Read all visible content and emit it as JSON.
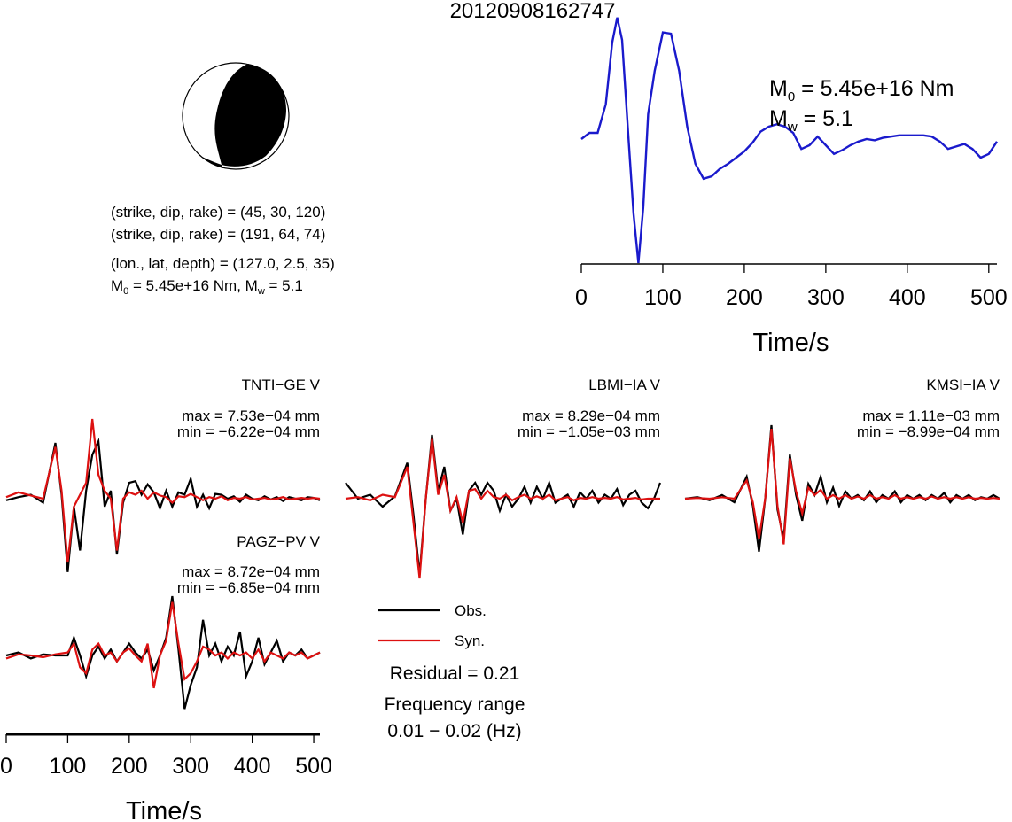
{
  "title": "20120908162747",
  "colors": {
    "observed": "#000000",
    "synthetic": "#dd1111",
    "stf": "#1a1acc",
    "axis": "#000000"
  },
  "mechanism": {
    "plane1_label": "(strike, dip, rake) = (45, 30, 120)",
    "plane2_label": "(strike, dip, rake) = (191, 64, 74)",
    "location_label": "(lon., lat, depth) = (127.0, 2.5, 35)",
    "m0_prefix": "M",
    "m0_sub": "0",
    "m0_value": " = 5.45e+16 Nm, M",
    "mw_sub": "w",
    "mw_value": " = 5.1"
  },
  "moment_info": {
    "m0_prefix": "M",
    "m0_sub": "0",
    "m0_value": " = 5.45e+16 Nm",
    "mw_prefix": "M",
    "mw_sub": "w",
    "mw_value": " = 5.1"
  },
  "legend": {
    "obs_label": "Obs.",
    "syn_label": "Syn.",
    "residual_label": "Residual = 0.21",
    "freq_label": "Frequency range",
    "freq_value": "0.01 − 0.02 (Hz)"
  },
  "chart_data": [
    {
      "type": "line",
      "title": "",
      "xlabel": "Time/s",
      "ylabel": "",
      "xlim": [
        0,
        510
      ],
      "xticks": [
        0,
        100,
        200,
        300,
        400,
        500
      ],
      "grid": false,
      "series": [
        {
          "x": [
            0,
            10,
            20,
            30,
            38,
            44,
            50,
            58,
            64,
            70,
            76,
            82,
            90,
            100,
            110,
            120,
            130,
            140,
            150,
            160,
            170,
            180,
            190,
            200,
            210,
            220,
            230,
            240,
            250,
            260,
            270,
            280,
            290,
            300,
            310,
            320,
            330,
            340,
            350,
            360,
            370,
            380,
            390,
            400,
            410,
            420,
            430,
            440,
            450,
            460,
            470,
            480,
            490,
            500,
            510
          ],
          "y": [
            0.0,
            0.05,
            0.05,
            0.28,
            0.78,
            0.98,
            0.8,
            0.0,
            -0.6,
            -1.0,
            -0.55,
            0.2,
            0.55,
            0.86,
            0.85,
            0.55,
            0.1,
            -0.2,
            -0.32,
            -0.3,
            -0.24,
            -0.2,
            -0.15,
            -0.1,
            -0.03,
            0.06,
            0.1,
            0.12,
            0.1,
            0.05,
            -0.08,
            -0.05,
            0.02,
            -0.05,
            -0.12,
            -0.09,
            -0.05,
            -0.02,
            0.0,
            -0.01,
            0.01,
            0.02,
            0.03,
            0.03,
            0.03,
            0.03,
            0.02,
            -0.02,
            -0.08,
            -0.06,
            -0.04,
            -0.08,
            -0.15,
            -0.12,
            -0.02
          ]
        }
      ]
    },
    {
      "type": "line",
      "title": "TNTI−GE V",
      "max_label": "max = 7.53e−04 mm",
      "min_label": "min = −6.22e−04 mm",
      "series": [
        {
          "name": "Obs.",
          "x": [
            0,
            20,
            40,
            60,
            80,
            90,
            100,
            110,
            120,
            130,
            140,
            150,
            160,
            170,
            180,
            190,
            200,
            210,
            220,
            230,
            240,
            250,
            260,
            270,
            280,
            290,
            300,
            310,
            320,
            330,
            340,
            350,
            360,
            370,
            380,
            390,
            400,
            410,
            420,
            430,
            440,
            450,
            460,
            470,
            480,
            490,
            500,
            510
          ],
          "y": [
            -0.02,
            0.02,
            0.05,
            -0.05,
            0.7,
            0.05,
            -0.92,
            -0.1,
            -0.65,
            0.1,
            0.55,
            0.72,
            -0.1,
            0.1,
            -0.7,
            -0.05,
            0.2,
            0.22,
            0.05,
            0.18,
            0.08,
            -0.12,
            0.1,
            -0.1,
            0.08,
            0.05,
            0.25,
            -0.1,
            0.05,
            -0.12,
            0.06,
            0.05,
            0.0,
            0.03,
            -0.04,
            0.05,
            0.0,
            -0.02,
            0.03,
            -0.01,
            0.02,
            -0.03,
            0.02,
            0.0,
            -0.02,
            0.02,
            0.01,
            -0.02
          ]
        },
        {
          "name": "Syn.",
          "x": [
            0,
            20,
            40,
            60,
            80,
            90,
            100,
            110,
            120,
            130,
            140,
            150,
            160,
            170,
            180,
            190,
            200,
            210,
            220,
            230,
            240,
            250,
            260,
            270,
            280,
            290,
            300,
            310,
            320,
            330,
            340,
            350,
            360,
            370,
            380,
            390,
            400,
            410,
            420,
            430,
            440,
            450,
            460,
            470,
            480,
            490,
            500,
            510
          ],
          "y": [
            0.02,
            0.08,
            0.04,
            0.0,
            0.65,
            0.1,
            -0.8,
            -0.1,
            0.05,
            0.2,
            1.0,
            0.3,
            0.1,
            0.0,
            -0.65,
            0.0,
            0.08,
            0.05,
            0.1,
            0.0,
            0.08,
            0.04,
            0.02,
            -0.05,
            0.03,
            0.02,
            0.06,
            0.02,
            -0.02,
            0.02,
            0.0,
            0.03,
            -0.02,
            0.01,
            0.0,
            0.02,
            -0.01,
            0.0,
            0.01,
            -0.01,
            0.0,
            0.02,
            -0.01,
            0.0,
            0.01,
            0.0,
            0.01,
            0.0
          ]
        }
      ]
    },
    {
      "type": "line",
      "title": "LBMI−IA V",
      "max_label": "max = 8.29e−04 mm",
      "min_label": "min = −1.05e−03 mm",
      "series": [
        {
          "name": "Obs.",
          "x": [
            0,
            20,
            40,
            60,
            80,
            100,
            110,
            120,
            130,
            140,
            150,
            160,
            170,
            180,
            190,
            200,
            210,
            220,
            230,
            240,
            250,
            260,
            270,
            280,
            290,
            300,
            310,
            320,
            330,
            340,
            350,
            360,
            370,
            380,
            390,
            400,
            410,
            420,
            430,
            440,
            450,
            460,
            470,
            480,
            490,
            500,
            510
          ],
          "y": [
            0.2,
            0.0,
            0.05,
            -0.1,
            0.03,
            0.45,
            -0.2,
            -0.95,
            0.0,
            0.8,
            0.1,
            0.4,
            -0.15,
            0.0,
            -0.45,
            0.1,
            0.2,
            0.05,
            0.2,
            0.1,
            -0.15,
            0.05,
            -0.1,
            0.0,
            0.15,
            -0.05,
            0.15,
            0.0,
            0.2,
            -0.05,
            0.0,
            0.05,
            -0.1,
            0.08,
            0.0,
            0.1,
            -0.05,
            0.05,
            0.0,
            0.12,
            -0.08,
            0.05,
            0.1,
            -0.05,
            -0.12,
            0.0,
            0.2
          ]
        },
        {
          "name": "Syn.",
          "x": [
            0,
            20,
            40,
            60,
            80,
            100,
            110,
            120,
            130,
            140,
            150,
            160,
            170,
            180,
            190,
            200,
            210,
            220,
            230,
            240,
            250,
            260,
            270,
            280,
            290,
            300,
            310,
            320,
            330,
            340,
            350,
            360,
            370,
            380,
            390,
            400,
            410,
            420,
            430,
            440,
            450,
            460,
            470,
            480,
            490,
            500,
            510
          ],
          "y": [
            0.0,
            0.02,
            -0.02,
            0.05,
            0.02,
            0.4,
            -0.3,
            -1.0,
            0.0,
            0.75,
            0.05,
            0.3,
            -0.15,
            0.02,
            -0.3,
            0.1,
            0.12,
            0.0,
            0.1,
            0.02,
            0.0,
            0.05,
            -0.02,
            0.02,
            0.05,
            0.0,
            0.03,
            0.0,
            0.05,
            -0.02,
            0.0,
            0.02,
            -0.02,
            0.01,
            0.0,
            0.02,
            0.0,
            0.01,
            0.0,
            0.02,
            -0.01,
            0.0,
            0.01,
            -0.01,
            0.0,
            0.0,
            0.0
          ]
        }
      ]
    },
    {
      "type": "line",
      "title": "KMSI−IA V",
      "max_label": "max = 1.11e−03 mm",
      "min_label": "min = −8.99e−04 mm",
      "series": [
        {
          "name": "Obs.",
          "x": [
            0,
            20,
            40,
            60,
            80,
            100,
            110,
            120,
            130,
            140,
            150,
            160,
            170,
            180,
            190,
            200,
            210,
            220,
            230,
            240,
            250,
            260,
            270,
            280,
            290,
            300,
            310,
            320,
            330,
            340,
            350,
            360,
            370,
            380,
            390,
            400,
            410,
            420,
            430,
            440,
            450,
            460,
            470,
            480,
            490,
            500,
            510
          ],
          "y": [
            0.0,
            0.02,
            -0.02,
            0.05,
            -0.05,
            0.3,
            -0.1,
            -0.72,
            0.0,
            1.0,
            -0.15,
            -0.55,
            0.6,
            0.05,
            -0.3,
            0.2,
            0.05,
            0.3,
            -0.05,
            0.15,
            -0.1,
            0.1,
            0.0,
            0.05,
            -0.02,
            0.1,
            -0.05,
            0.05,
            0.0,
            0.1,
            -0.05,
            0.05,
            0.0,
            0.05,
            -0.02,
            0.05,
            0.0,
            0.08,
            -0.05,
            0.05,
            0.0,
            0.05,
            -0.02,
            0.02,
            0.0,
            0.05,
            0.0
          ]
        },
        {
          "name": "Syn.",
          "x": [
            0,
            20,
            40,
            60,
            80,
            100,
            110,
            120,
            130,
            140,
            150,
            160,
            170,
            180,
            190,
            200,
            210,
            220,
            230,
            240,
            250,
            260,
            270,
            280,
            290,
            300,
            310,
            320,
            330,
            340,
            350,
            360,
            370,
            380,
            390,
            400,
            410,
            420,
            430,
            440,
            450,
            460,
            470,
            480,
            490,
            500,
            510
          ],
          "y": [
            0.0,
            0.01,
            0.0,
            0.02,
            0.0,
            0.25,
            -0.05,
            -0.55,
            0.0,
            0.95,
            -0.1,
            -0.62,
            0.55,
            0.1,
            -0.2,
            0.15,
            0.05,
            0.12,
            0.0,
            0.05,
            0.0,
            0.05,
            0.0,
            0.03,
            0.0,
            0.05,
            0.0,
            0.02,
            0.0,
            0.05,
            0.0,
            0.02,
            0.0,
            0.02,
            0.0,
            0.03,
            0.0,
            0.02,
            0.0,
            0.02,
            0.0,
            0.02,
            0.0,
            0.01,
            0.0,
            0.01,
            0.0
          ]
        }
      ]
    },
    {
      "type": "line",
      "title": "PAGZ−PV V",
      "max_label": "max = 8.72e−04 mm",
      "min_label": "min = −6.85e−04 mm",
      "xlabel": "Time/s",
      "xlim": [
        0,
        510
      ],
      "xticks": [
        0,
        100,
        200,
        300,
        400,
        500
      ],
      "series": [
        {
          "name": "Obs.",
          "x": [
            0,
            20,
            40,
            60,
            80,
            100,
            110,
            120,
            130,
            140,
            150,
            160,
            170,
            180,
            190,
            200,
            210,
            220,
            230,
            240,
            250,
            260,
            270,
            280,
            290,
            300,
            310,
            320,
            330,
            340,
            350,
            360,
            370,
            380,
            390,
            400,
            410,
            420,
            430,
            440,
            450,
            460,
            470,
            480,
            490,
            500,
            510
          ],
          "y": [
            0.0,
            0.05,
            -0.05,
            0.02,
            0.0,
            0.0,
            0.3,
            0.0,
            -0.35,
            0.0,
            0.15,
            -0.05,
            0.1,
            -0.1,
            0.05,
            0.2,
            0.05,
            -0.05,
            0.1,
            -0.25,
            0.0,
            0.3,
            1.0,
            0.1,
            -0.9,
            -0.5,
            -0.2,
            0.6,
            0.0,
            0.2,
            -0.1,
            0.15,
            0.0,
            0.4,
            -0.35,
            -0.1,
            0.3,
            -0.15,
            0.05,
            0.25,
            -0.1,
            0.05,
            0.0,
            0.1,
            -0.05,
            0.0,
            0.05
          ]
        },
        {
          "name": "Syn.",
          "x": [
            0,
            20,
            40,
            60,
            80,
            100,
            110,
            120,
            130,
            140,
            150,
            160,
            170,
            180,
            190,
            200,
            210,
            220,
            230,
            240,
            250,
            260,
            270,
            280,
            290,
            300,
            310,
            320,
            330,
            340,
            350,
            360,
            370,
            380,
            390,
            400,
            410,
            420,
            430,
            440,
            450,
            460,
            470,
            480,
            490,
            500,
            510
          ],
          "y": [
            -0.05,
            0.02,
            0.0,
            -0.03,
            0.02,
            0.05,
            0.2,
            -0.2,
            -0.3,
            0.1,
            0.2,
            0.0,
            0.05,
            -0.1,
            0.05,
            0.12,
            0.0,
            -0.1,
            0.2,
            -0.55,
            0.0,
            0.25,
            0.9,
            0.2,
            -0.4,
            -0.3,
            -0.1,
            0.15,
            0.1,
            0.0,
            0.05,
            -0.05,
            0.05,
            0.0,
            0.05,
            -0.05,
            0.1,
            -0.1,
            0.05,
            0.0,
            -0.05,
            0.05,
            0.0,
            0.05,
            -0.05,
            0.0,
            0.05
          ]
        }
      ]
    }
  ]
}
